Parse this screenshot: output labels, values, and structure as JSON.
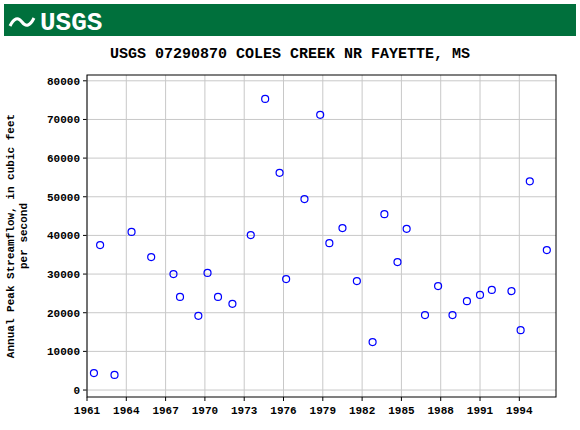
{
  "header": {
    "logo": "USGS"
  },
  "chart_data": {
    "type": "scatter",
    "title": "USGS 07290870 COLES CREEK NR FAYETTE, MS",
    "y_label": [
      "Annual Peak Streamflow, in cubic feet",
      "per second"
    ],
    "x": [
      1961.53,
      1962.0,
      1963.1,
      1964.4,
      1965.9,
      1967.6,
      1968.1,
      1969.5,
      1970.2,
      1971.0,
      1972.1,
      1973.5,
      1974.6,
      1975.7,
      1976.2,
      1977.6,
      1978.8,
      1979.5,
      1980.5,
      1981.6,
      1982.8,
      1983.7,
      1984.7,
      1985.4,
      1986.8,
      1987.8,
      1988.9,
      1990.0,
      1991.0,
      1991.9,
      1993.4,
      1994.1,
      1994.8,
      1996.1
    ],
    "values": [
      4400,
      37500,
      3900,
      40900,
      34400,
      30000,
      24100,
      19200,
      30300,
      24100,
      22300,
      40100,
      75300,
      56200,
      28700,
      49400,
      71200,
      38000,
      41900,
      28200,
      12400,
      45500,
      33100,
      41700,
      19400,
      26900,
      19400,
      23000,
      24600,
      25900,
      25600,
      15500,
      54000,
      36200
    ],
    "color": "#0000ff",
    "marker": "circle-open",
    "xlim": [
      1961,
      1996.8
    ],
    "xticks": [
      1961,
      1964,
      1967,
      1970,
      1973,
      1976,
      1979,
      1982,
      1985,
      1988,
      1991,
      1994
    ],
    "ylim": [
      -1800,
      81500
    ],
    "yticks": [
      0,
      10000,
      20000,
      30000,
      40000,
      50000,
      60000,
      70000,
      80000
    ],
    "grid": true
  }
}
